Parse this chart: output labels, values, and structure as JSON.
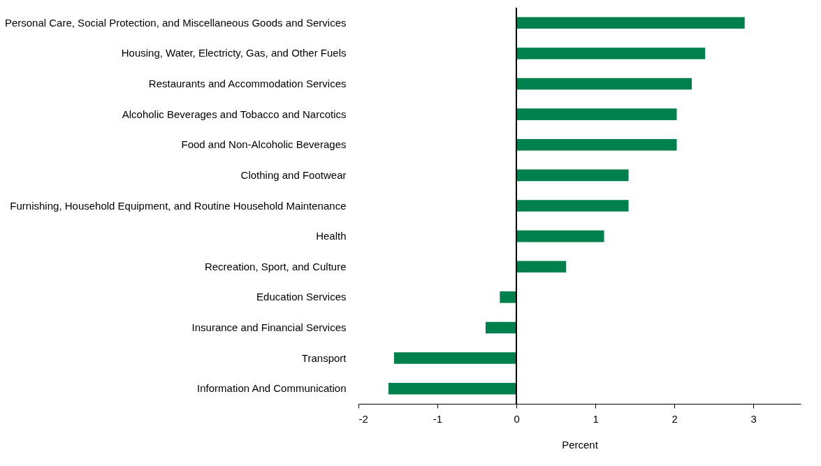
{
  "chart_data": {
    "type": "bar",
    "orientation": "horizontal",
    "xlabel": "Percent",
    "categories": [
      "Personal Care, Social Protection, and Miscellaneous Goods and Services",
      "Housing, Water, Electricty, Gas, and Other Fuels",
      "Restaurants and Accommodation Services",
      "Alcoholic Beverages and Tobacco and Narcotics",
      "Food and Non-Alcoholic Beverages",
      "Clothing and Footwear",
      "Furnishing, Household Equipment, and Routine Household Maintenance",
      "Health",
      "Recreation, Sport, and Culture",
      "Education Services",
      "Insurance and Financial Services",
      "Transport",
      "Information And Communication"
    ],
    "values": [
      2.89,
      2.39,
      2.22,
      2.03,
      2.03,
      1.42,
      1.42,
      1.11,
      0.63,
      -0.21,
      -0.39,
      -1.55,
      -1.62
    ],
    "color": "#00804c",
    "xlim": [
      -2,
      3.6
    ],
    "xticks": [
      -2,
      -1,
      0,
      1,
      2,
      3
    ],
    "ref_lines": [
      {
        "axis": "x",
        "value": 0
      }
    ]
  }
}
